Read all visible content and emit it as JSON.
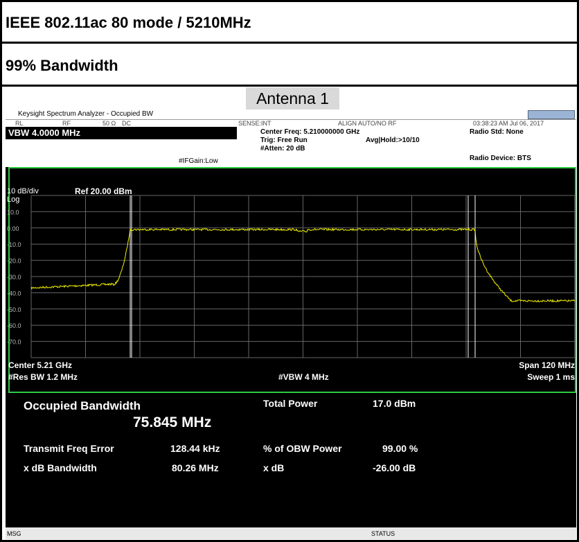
{
  "header": {
    "title": "IEEE 802.11ac 80 mode / 5210MHz",
    "subtitle": "99% Bandwidth",
    "antenna": "Antenna 1"
  },
  "window": {
    "title": "Keysight Spectrum Analyzer - Occupied BW"
  },
  "status_row": {
    "rl": "RL",
    "rf": "RF",
    "impedance": "50 Ω",
    "coupling": "DC",
    "sense": "SENSE:INT",
    "align": "ALIGN AUTO/NO RF",
    "datetime": "03:38:23 AM Jul 06, 2017"
  },
  "settings": {
    "vbw": "VBW 4.0000 MHz",
    "ifgain": "#IFGain:Low",
    "center_freq": "Center Freq: 5.210000000 GHz",
    "trig": "Trig: Free Run",
    "atten": "#Atten: 20 dB",
    "avg": "Avg|Hold:>10/10",
    "radio_std": "Radio Std: None",
    "radio_device": "Radio Device: BTS"
  },
  "graph": {
    "scale": "10 dB/div",
    "ref": "Ref 20.00 dBm",
    "log": "Log",
    "y_labels": [
      "10.0",
      "0.00",
      "-10.0",
      "-20.0",
      "-30.0",
      "-40.0",
      "-50.0",
      "-60.0",
      "-70.0"
    ],
    "center": "Center 5.21 GHz",
    "res_bw": "#Res BW 1.2 MHz",
    "vbw": "#VBW 4 MHz",
    "span": "Span 120 MHz",
    "sweep": "Sweep 1 ms"
  },
  "results": {
    "obw_label": "Occupied Bandwidth",
    "obw_value": "75.845 MHz",
    "total_power_label": "Total Power",
    "total_power_value": "17.0 dBm",
    "freq_error_label": "Transmit Freq Error",
    "freq_error_value": "128.44 kHz",
    "obw_power_label": "% of OBW Power",
    "obw_power_value": "99.00 %",
    "xdb_bw_label": "x dB Bandwidth",
    "xdb_bw_value": "80.26 MHz",
    "xdb_label": "x dB",
    "xdb_value": "-26.00 dB"
  },
  "statusbar": {
    "msg": "MSG",
    "status": "STATUS"
  }
}
